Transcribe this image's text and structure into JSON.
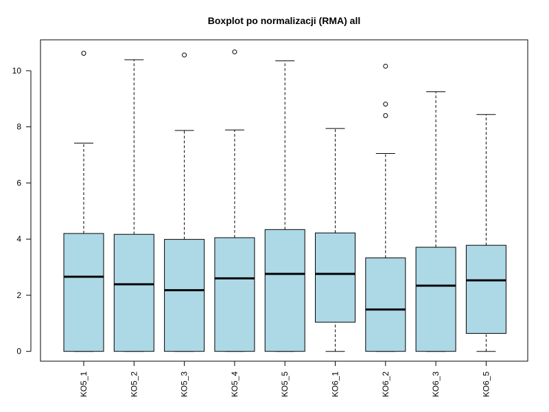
{
  "chart_data": {
    "type": "boxplot",
    "title": "Boxplot po normalizacji (RMA) all",
    "xlabel": "",
    "ylabel": "",
    "ylim": [
      -0.35,
      11.1
    ],
    "yticks": [
      0,
      2,
      4,
      6,
      8,
      10
    ],
    "box_color": "#add8e6",
    "categories": [
      "KO5_1",
      "KO5_2",
      "KO5_3",
      "KO5_4",
      "KO5_5",
      "KO6_1",
      "KO6_2",
      "KO6_3",
      "KO6_5"
    ],
    "series": [
      {
        "min": 0,
        "q1": 0,
        "median": 2.66,
        "q3": 4.2,
        "max": 7.42,
        "outliers": [
          10.62
        ]
      },
      {
        "min": 0,
        "q1": 0,
        "median": 2.39,
        "q3": 4.17,
        "max": 10.39,
        "outliers": []
      },
      {
        "min": 0,
        "q1": 0,
        "median": 2.18,
        "q3": 3.99,
        "max": 7.87,
        "outliers": [
          10.56
        ]
      },
      {
        "min": 0,
        "q1": 0,
        "median": 2.6,
        "q3": 4.05,
        "max": 7.89,
        "outliers": [
          10.67
        ]
      },
      {
        "min": 0,
        "q1": 0,
        "median": 2.76,
        "q3": 4.34,
        "max": 10.35,
        "outliers": []
      },
      {
        "min": 0,
        "q1": 1.04,
        "median": 2.76,
        "q3": 4.22,
        "max": 7.94,
        "outliers": []
      },
      {
        "min": 0,
        "q1": 0,
        "median": 1.49,
        "q3": 3.33,
        "max": 7.05,
        "outliers": [
          8.4,
          8.81,
          10.16
        ]
      },
      {
        "min": 0,
        "q1": 0,
        "median": 2.34,
        "q3": 3.71,
        "max": 9.25,
        "outliers": []
      },
      {
        "min": 0,
        "q1": 0.64,
        "median": 2.53,
        "q3": 3.78,
        "max": 8.44,
        "outliers": []
      }
    ]
  }
}
